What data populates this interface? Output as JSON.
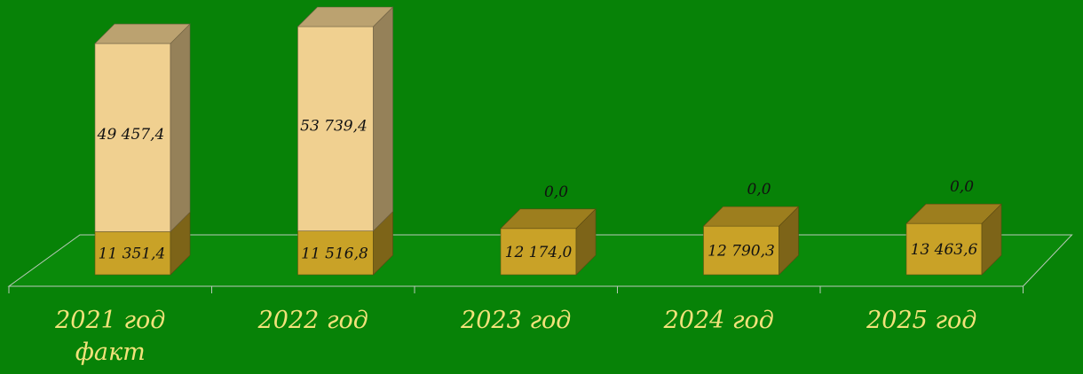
{
  "chart_data": {
    "type": "bar",
    "stacked": true,
    "three_d": true,
    "categories": [
      "2021 год\nфакт",
      "2022 год",
      "2023 год",
      "2024 год",
      "2025 год"
    ],
    "series": [
      {
        "values": [
          11351.4,
          11516.8,
          12174.0,
          12790.3,
          13463.6
        ],
        "labels": [
          "11 351,4",
          "11 516,8",
          "12 174,0",
          "12 790,3",
          "13 463,6"
        ],
        "color": "#c9a227"
      },
      {
        "values": [
          49457.4,
          53739.4,
          0.0,
          0.0,
          0.0
        ],
        "labels": [
          "49 457,4",
          "53 739,4",
          "0,0",
          "0,0",
          "0,0"
        ],
        "color": "#f0d090"
      }
    ],
    "background": "#078207",
    "category_label_color": "#f2e27a",
    "grid": false,
    "legend": "none"
  }
}
